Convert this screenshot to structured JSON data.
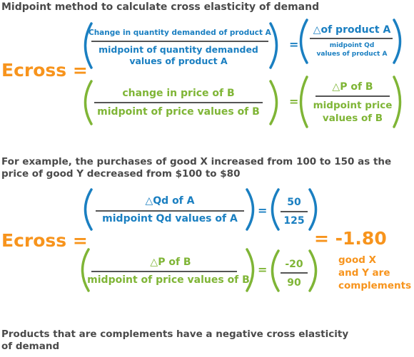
{
  "heading": "Midpoint method to calculate cross elasticity of demand",
  "formula": {
    "lhs": "Ecross =",
    "equals_1": "=",
    "equals_2": "=",
    "num_fraction": {
      "numerator": "Change in quantity demanded of product A",
      "denominator_line1": "midpoint of quantity demanded",
      "denominator_line2": "values of product A"
    },
    "num_short": {
      "numerator": "△of product A",
      "denominator_line1": "midpoint Qd",
      "denominator_line2": "values of product A"
    },
    "den_fraction": {
      "numerator": "change in price of B",
      "denominator": "midpoint of price values of B"
    },
    "den_short": {
      "numerator": "△P of B",
      "denominator_line1": "midpoint price",
      "denominator_line2": "values of B"
    }
  },
  "example": {
    "intro_line1": "For example, the purchases of good X increased from 100 to 150 as the",
    "intro_line2": "price of good Y decreased from $100 to $80",
    "lhs": "Ecross =",
    "equals_1": "=",
    "equals_2": "=",
    "num_fraction": {
      "numerator": "△Qd of A",
      "denominator": "midpoint Qd values of A"
    },
    "num_value": {
      "numerator": "50",
      "denominator": "125"
    },
    "den_fraction": {
      "numerator": "△P of B",
      "denominator": "midpoint of price values of B"
    },
    "den_value": {
      "numerator": "-20",
      "denominator": "90"
    },
    "result": "= -1.80",
    "result_note_line1": "good X",
    "result_note_line2": "and Y are",
    "result_note_line3": "complements"
  },
  "conclusion_line1": "Products that are complements have a negative cross elasticity",
  "conclusion_line2": "of demand",
  "colors": {
    "blue": "#1a7fc1",
    "green": "#7fb536",
    "orange": "#f7941d",
    "text": "#4a4a4a",
    "rule": "#555555"
  }
}
